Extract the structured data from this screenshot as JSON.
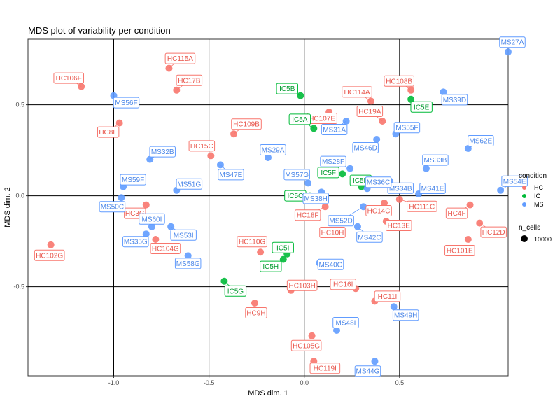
{
  "chart_data": {
    "type": "scatter",
    "title": "MDS plot of variability per condition",
    "xlabel": "MDS dim. 1",
    "ylabel": "MDS dim. 2",
    "xlim": [
      -1.45,
      1.07
    ],
    "ylim": [
      -0.99,
      0.86
    ],
    "x_ticks": [
      -1.0,
      -0.5,
      0.0,
      0.5
    ],
    "x_tick_labels": [
      "-1.0",
      "-0.5",
      "0.0",
      "0.5"
    ],
    "y_ticks": [
      -0.5,
      0.0,
      0.5
    ],
    "y_tick_labels": [
      "-0.5",
      "0.0",
      "0.5"
    ],
    "gridlines": true,
    "legend": {
      "position": "right",
      "color_title": "condition",
      "color_items": [
        {
          "label": "HC",
          "color": "#F8766D"
        },
        {
          "label": "IC",
          "color": "#00BA38"
        },
        {
          "label": "MS",
          "color": "#619CFF"
        }
      ],
      "size_title": "n_cells",
      "size_items": [
        {
          "label": "10000"
        }
      ]
    },
    "series": [
      {
        "name": "HC",
        "color": "#F8766D",
        "points": [
          {
            "label": "HC106F",
            "x": -1.17,
            "y": 0.6
          },
          {
            "label": "HC115A",
            "x": -0.71,
            "y": 0.7
          },
          {
            "label": "HC17B",
            "x": -0.67,
            "y": 0.58
          },
          {
            "label": "HC8E",
            "x": -0.97,
            "y": 0.4
          },
          {
            "label": "HC15C",
            "x": -0.49,
            "y": 0.22
          },
          {
            "label": "HC109B",
            "x": -0.37,
            "y": 0.34
          },
          {
            "label": "HC107E",
            "x": 0.13,
            "y": 0.46
          },
          {
            "label": "HC114A",
            "x": 0.35,
            "y": 0.52
          },
          {
            "label": "HC108B",
            "x": 0.56,
            "y": 0.58
          },
          {
            "label": "HC19A",
            "x": 0.41,
            "y": 0.41
          },
          {
            "label": "HC3G",
            "x": -0.83,
            "y": -0.05
          },
          {
            "label": "HC104G",
            "x": -0.78,
            "y": -0.24
          },
          {
            "label": "HC102G",
            "x": -1.33,
            "y": -0.27
          },
          {
            "label": "HC110G",
            "x": -0.23,
            "y": -0.31
          },
          {
            "label": "HC18F",
            "x": 0.11,
            "y": -0.06
          },
          {
            "label": "HC10H",
            "x": 0.17,
            "y": -0.14
          },
          {
            "label": "HC14C",
            "x": 0.42,
            "y": -0.04
          },
          {
            "label": "HC13E",
            "x": 0.43,
            "y": -0.14
          },
          {
            "label": "HC111C",
            "x": 0.5,
            "y": -0.02
          },
          {
            "label": "HC4F",
            "x": 0.87,
            "y": -0.05
          },
          {
            "label": "HC12D",
            "x": 0.92,
            "y": -0.15
          },
          {
            "label": "HC101E",
            "x": 0.86,
            "y": -0.24
          },
          {
            "label": "HC103H",
            "x": -0.07,
            "y": -0.52
          },
          {
            "label": "HC16I",
            "x": 0.27,
            "y": -0.51
          },
          {
            "label": "HC11I",
            "x": 0.37,
            "y": -0.58
          },
          {
            "label": "HC9H",
            "x": -0.26,
            "y": -0.59
          },
          {
            "label": "HC105G",
            "x": 0.04,
            "y": -0.77
          },
          {
            "label": "HC119I",
            "x": 0.05,
            "y": -0.91
          }
        ]
      },
      {
        "name": "IC",
        "color": "#00BA38",
        "points": [
          {
            "label": "IC5B",
            "x": -0.02,
            "y": 0.55
          },
          {
            "label": "IC5E",
            "x": 0.56,
            "y": 0.53
          },
          {
            "label": "IC5A",
            "x": 0.05,
            "y": 0.37
          },
          {
            "label": "IC5F",
            "x": 0.2,
            "y": 0.12
          },
          {
            "label": "IC5D",
            "x": 0.3,
            "y": 0.05
          },
          {
            "label": "IC5C",
            "x": 0.03,
            "y": 0.0
          },
          {
            "label": "IC5I",
            "x": -0.09,
            "y": -0.32
          },
          {
            "label": "IC5H",
            "x": -0.11,
            "y": -0.35
          },
          {
            "label": "IC5G",
            "x": -0.42,
            "y": -0.47
          }
        ]
      },
      {
        "name": "MS",
        "color": "#619CFF",
        "points": [
          {
            "label": "MS27A",
            "x": 1.07,
            "y": 0.79
          },
          {
            "label": "MS56F",
            "x": -1.0,
            "y": 0.55
          },
          {
            "label": "MS39D",
            "x": 0.73,
            "y": 0.57
          },
          {
            "label": "MS31A",
            "x": 0.22,
            "y": 0.41
          },
          {
            "label": "MS55F",
            "x": 0.48,
            "y": 0.34
          },
          {
            "label": "MS46D",
            "x": 0.38,
            "y": 0.31
          },
          {
            "label": "MS62E",
            "x": 0.86,
            "y": 0.26
          },
          {
            "label": "MS32B",
            "x": -0.81,
            "y": 0.2
          },
          {
            "label": "MS29A",
            "x": -0.19,
            "y": 0.21
          },
          {
            "label": "MS47E",
            "x": -0.44,
            "y": 0.17
          },
          {
            "label": "MS33B",
            "x": 0.64,
            "y": 0.15
          },
          {
            "label": "MS28F",
            "x": 0.24,
            "y": 0.15
          },
          {
            "label": "MS34B",
            "x": 0.45,
            "y": 0.08
          },
          {
            "label": "MS57G",
            "x": 0.02,
            "y": 0.07
          },
          {
            "label": "MS59F",
            "x": -0.95,
            "y": 0.05
          },
          {
            "label": "MS51G",
            "x": -0.67,
            "y": 0.03
          },
          {
            "label": "MS41E",
            "x": 0.6,
            "y": 0.01
          },
          {
            "label": "MS54E",
            "x": 1.03,
            "y": 0.03
          },
          {
            "label": "MS36C",
            "x": 0.33,
            "y": 0.04
          },
          {
            "label": "MS38H",
            "x": 0.09,
            "y": 0.02
          },
          {
            "label": "MS50C",
            "x": -0.96,
            "y": -0.01
          },
          {
            "label": "MS52D",
            "x": 0.31,
            "y": -0.06
          },
          {
            "label": "MS60I",
            "x": -0.8,
            "y": -0.17
          },
          {
            "label": "MS53I",
            "x": -0.7,
            "y": -0.17
          },
          {
            "label": "MS42C",
            "x": 0.28,
            "y": -0.17
          },
          {
            "label": "MS35G",
            "x": -0.83,
            "y": -0.21
          },
          {
            "label": "MS58G",
            "x": -0.61,
            "y": -0.33
          },
          {
            "label": "MS40G",
            "x": 0.08,
            "y": -0.37
          },
          {
            "label": "MS49H",
            "x": 0.47,
            "y": -0.61
          },
          {
            "label": "MS48I",
            "x": 0.17,
            "y": -0.74
          },
          {
            "label": "MS44G",
            "x": 0.37,
            "y": -0.91
          }
        ]
      }
    ]
  }
}
